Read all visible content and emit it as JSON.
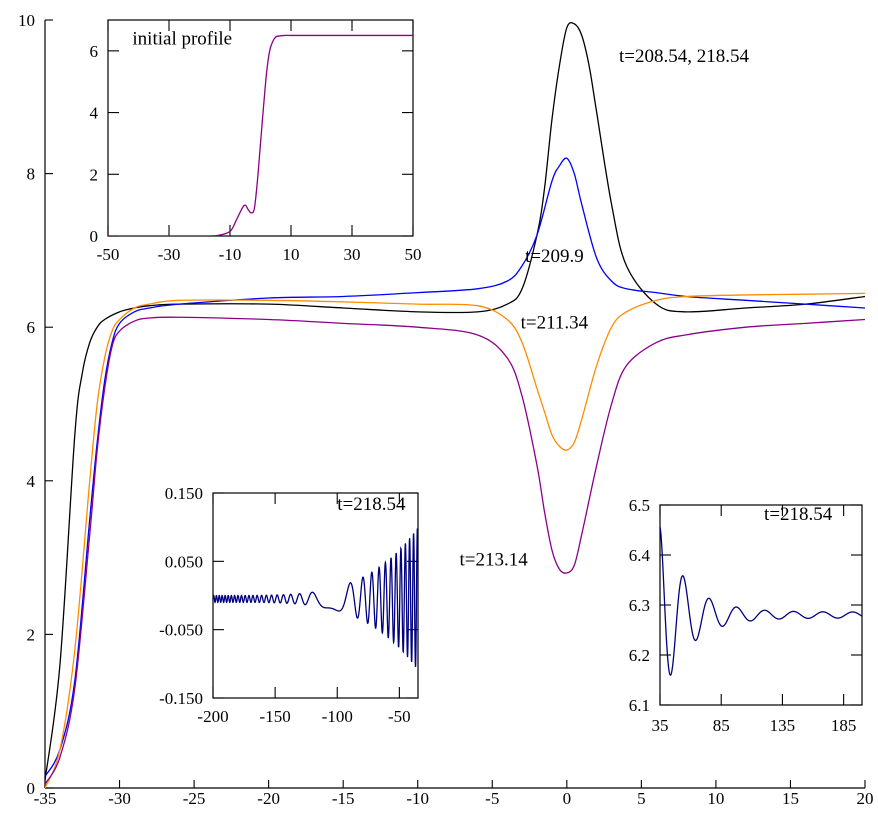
{
  "chart_data": [
    {
      "id": "main",
      "type": "line",
      "title": "",
      "xlabel": "",
      "ylabel": "",
      "xlim": [
        -35,
        20
      ],
      "ylim": [
        0,
        10
      ],
      "x_ticks": [
        -35,
        -30,
        -25,
        -20,
        -15,
        -10,
        -5,
        0,
        5,
        10,
        15,
        20
      ],
      "y_ticks": [
        0,
        2,
        4,
        6,
        8,
        10
      ],
      "grid": false,
      "series": [
        {
          "color": "#000000",
          "x": [
            -35,
            -34,
            -33,
            -32.5,
            -32,
            -31.5,
            -31,
            -30,
            -29,
            -28,
            -26,
            -20,
            -15,
            -10,
            -6,
            -4,
            -3,
            -2,
            -1.5,
            -1,
            -0.5,
            0,
            0.5,
            1,
            1.5,
            2,
            3,
            4,
            6,
            8,
            12,
            16,
            20
          ],
          "y": [
            0.1,
            1.6,
            4.6,
            5.4,
            5.8,
            6.0,
            6.1,
            6.2,
            6.25,
            6.28,
            6.3,
            6.3,
            6.25,
            6.2,
            6.2,
            6.3,
            6.5,
            7.2,
            7.8,
            8.7,
            9.4,
            9.9,
            9.95,
            9.8,
            9.4,
            8.8,
            7.6,
            6.8,
            6.3,
            6.2,
            6.25,
            6.3,
            6.4
          ]
        },
        {
          "color": "#0000ff",
          "x": [
            -35,
            -34,
            -33,
            -32,
            -31.5,
            -31,
            -30.5,
            -30,
            -29,
            -28,
            -26,
            -20,
            -15,
            -10,
            -6,
            -4,
            -3,
            -2,
            -1,
            -0.5,
            0,
            0.5,
            1,
            2,
            3,
            4,
            6,
            8,
            12,
            16,
            20
          ],
          "y": [
            0.15,
            0.5,
            1.4,
            3.5,
            4.5,
            5.3,
            5.8,
            6.05,
            6.2,
            6.25,
            6.3,
            6.38,
            6.4,
            6.45,
            6.5,
            6.6,
            6.8,
            7.2,
            7.9,
            8.1,
            8.2,
            8.0,
            7.6,
            6.9,
            6.6,
            6.5,
            6.45,
            6.4,
            6.35,
            6.3,
            6.25
          ]
        },
        {
          "color": "#ff8c00",
          "x": [
            -35,
            -34,
            -33,
            -32,
            -31.5,
            -31,
            -30.5,
            -30,
            -29,
            -28,
            -26,
            -20,
            -15,
            -10,
            -6,
            -4,
            -3,
            -2,
            -1.5,
            -1,
            -0.5,
            0,
            0.5,
            1,
            2,
            3,
            4,
            6,
            8,
            12,
            16,
            20
          ],
          "y": [
            0.0,
            0.5,
            1.8,
            4.0,
            5.0,
            5.6,
            5.95,
            6.1,
            6.25,
            6.3,
            6.35,
            6.35,
            6.33,
            6.3,
            6.28,
            6.1,
            5.8,
            5.2,
            4.9,
            4.6,
            4.45,
            4.4,
            4.5,
            4.8,
            5.5,
            6.0,
            6.2,
            6.35,
            6.4,
            6.42,
            6.43,
            6.44
          ]
        },
        {
          "color": "#8b008b",
          "x": [
            -35,
            -34,
            -33,
            -32,
            -31.5,
            -31,
            -30.5,
            -30,
            -29,
            -28,
            -26,
            -20,
            -15,
            -10,
            -6,
            -4,
            -3,
            -2,
            -1.5,
            -1,
            -0.5,
            0,
            0.5,
            1,
            2,
            3,
            4,
            6,
            8,
            12,
            16,
            20
          ],
          "y": [
            0.05,
            0.4,
            1.3,
            3.3,
            4.4,
            5.2,
            5.75,
            5.95,
            6.08,
            6.12,
            6.13,
            6.1,
            6.05,
            6.0,
            5.9,
            5.6,
            5.1,
            4.2,
            3.6,
            3.1,
            2.85,
            2.8,
            2.9,
            3.3,
            4.2,
            5.0,
            5.5,
            5.8,
            5.9,
            6.0,
            6.05,
            6.1
          ]
        }
      ],
      "annotations": [
        {
          "text": "t=208.54, 218.54",
          "x": 3.5,
          "y": 9.45
        },
        {
          "text": "t=209.9",
          "x": -2.8,
          "y": 6.85
        },
        {
          "text": "t=211.34",
          "x": -3.1,
          "y": 5.98
        },
        {
          "text": "t=213.14",
          "x": -7.2,
          "y": 2.9
        }
      ]
    },
    {
      "id": "inset-initial",
      "type": "line",
      "title": "",
      "xlim": [
        -50,
        50
      ],
      "ylim": [
        0,
        7
      ],
      "x_ticks": [
        -50,
        -30,
        -10,
        10,
        30,
        50
      ],
      "y_ticks": [
        0,
        2,
        4,
        6
      ],
      "series": [
        {
          "color": "#8b008b",
          "x": [
            -50,
            -20,
            -14,
            -10,
            -8,
            -6,
            -5,
            -4,
            -3,
            -2,
            -1,
            0,
            1,
            2,
            3,
            4,
            5,
            6,
            8,
            10,
            20,
            50
          ],
          "y": [
            0,
            0,
            0.02,
            0.15,
            0.5,
            0.9,
            1.0,
            0.85,
            0.75,
            0.9,
            1.8,
            3.0,
            4.2,
            5.3,
            6.0,
            6.3,
            6.45,
            6.48,
            6.5,
            6.5,
            6.5,
            6.5
          ]
        }
      ],
      "annotations": [
        {
          "text": "initial profile",
          "x": -42,
          "y": 6.2
        }
      ]
    },
    {
      "id": "inset-left",
      "type": "line",
      "title": "",
      "xlim": [
        -200,
        -35
      ],
      "ylim": [
        -0.15,
        0.15
      ],
      "x_ticks": [
        -200,
        -150,
        -100,
        -50
      ],
      "y_ticks": [
        -0.15,
        -0.05,
        0.05,
        0.15
      ],
      "y_tick_labels": [
        "-0.150",
        "-0.050",
        "0.050",
        "0.150"
      ],
      "series": [
        {
          "color": "#000080",
          "name": "",
          "values": []
        }
      ],
      "annotations": [
        {
          "text": "t=218.54",
          "x": -100,
          "y": 0.125
        }
      ]
    },
    {
      "id": "inset-right",
      "type": "line",
      "title": "",
      "xlim": [
        35,
        200
      ],
      "ylim": [
        6.1,
        6.5
      ],
      "x_ticks": [
        35,
        85,
        135,
        185
      ],
      "y_ticks": [
        6.1,
        6.2,
        6.3,
        6.4,
        6.5
      ],
      "series": [
        {
          "color": "#000080",
          "name": "",
          "values": []
        }
      ],
      "annotations": [
        {
          "text": "t=218.54",
          "x": 120,
          "y": 6.47
        }
      ]
    }
  ]
}
